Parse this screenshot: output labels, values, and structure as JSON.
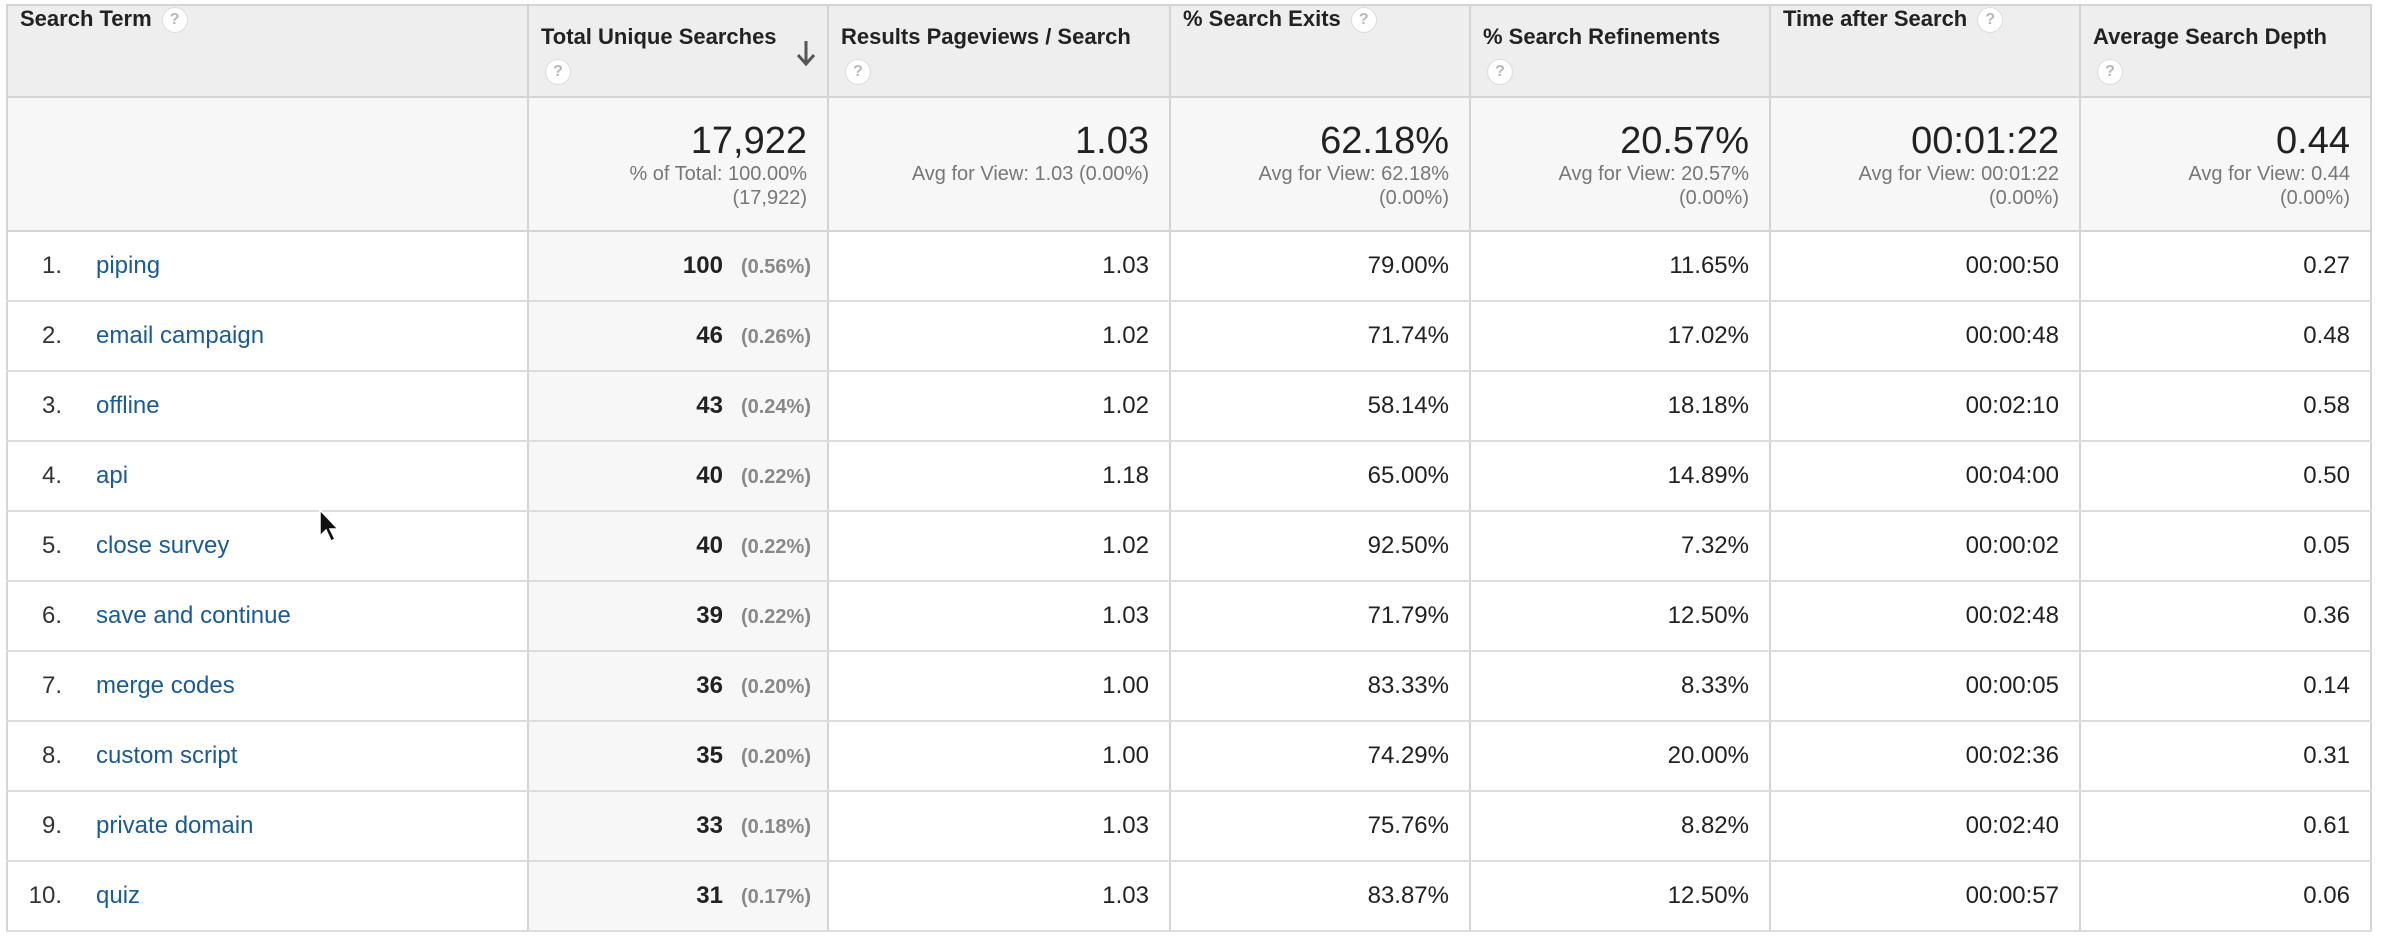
{
  "columns": [
    {
      "label": "Search Term"
    },
    {
      "label": "Total Unique Searches"
    },
    {
      "label": "Results Pageviews / Search"
    },
    {
      "label": "% Search Exits"
    },
    {
      "label": "% Search Refinements"
    },
    {
      "label": "Time after Search"
    },
    {
      "label": "Average Search Depth"
    }
  ],
  "help_icon": "?",
  "totals": {
    "total_unique": {
      "value": "17,922",
      "sub1": "% of Total: 100.00%",
      "sub2": "(17,922)"
    },
    "pageviews": {
      "value": "1.03",
      "sub1": "Avg for View: 1.03 (0.00%)",
      "sub2": ""
    },
    "exits": {
      "value": "62.18%",
      "sub1": "Avg for View: 62.18%",
      "sub2": "(0.00%)"
    },
    "refinements": {
      "value": "20.57%",
      "sub1": "Avg for View: 20.57%",
      "sub2": "(0.00%)"
    },
    "time": {
      "value": "00:01:22",
      "sub1": "Avg for View: 00:01:22",
      "sub2": "(0.00%)"
    },
    "depth": {
      "value": "0.44",
      "sub1": "Avg for View: 0.44",
      "sub2": "(0.00%)"
    }
  },
  "rows": [
    {
      "index": "1.",
      "term": "piping",
      "searches": "100",
      "share": "(0.56%)",
      "pageviews": "1.03",
      "exits": "79.00%",
      "refinements": "11.65%",
      "time": "00:00:50",
      "depth": "0.27"
    },
    {
      "index": "2.",
      "term": "email campaign",
      "searches": "46",
      "share": "(0.26%)",
      "pageviews": "1.02",
      "exits": "71.74%",
      "refinements": "17.02%",
      "time": "00:00:48",
      "depth": "0.48"
    },
    {
      "index": "3.",
      "term": "offline",
      "searches": "43",
      "share": "(0.24%)",
      "pageviews": "1.02",
      "exits": "58.14%",
      "refinements": "18.18%",
      "time": "00:02:10",
      "depth": "0.58"
    },
    {
      "index": "4.",
      "term": "api",
      "searches": "40",
      "share": "(0.22%)",
      "pageviews": "1.18",
      "exits": "65.00%",
      "refinements": "14.89%",
      "time": "00:04:00",
      "depth": "0.50"
    },
    {
      "index": "5.",
      "term": "close survey",
      "searches": "40",
      "share": "(0.22%)",
      "pageviews": "1.02",
      "exits": "92.50%",
      "refinements": "7.32%",
      "time": "00:00:02",
      "depth": "0.05"
    },
    {
      "index": "6.",
      "term": "save and continue",
      "searches": "39",
      "share": "(0.22%)",
      "pageviews": "1.03",
      "exits": "71.79%",
      "refinements": "12.50%",
      "time": "00:02:48",
      "depth": "0.36"
    },
    {
      "index": "7.",
      "term": "merge codes",
      "searches": "36",
      "share": "(0.20%)",
      "pageviews": "1.00",
      "exits": "83.33%",
      "refinements": "8.33%",
      "time": "00:00:05",
      "depth": "0.14"
    },
    {
      "index": "8.",
      "term": "custom script",
      "searches": "35",
      "share": "(0.20%)",
      "pageviews": "1.00",
      "exits": "74.29%",
      "refinements": "20.00%",
      "time": "00:02:36",
      "depth": "0.31"
    },
    {
      "index": "9.",
      "term": "private domain",
      "searches": "33",
      "share": "(0.18%)",
      "pageviews": "1.03",
      "exits": "75.76%",
      "refinements": "8.82%",
      "time": "00:02:40",
      "depth": "0.61"
    },
    {
      "index": "10.",
      "term": "quiz",
      "searches": "31",
      "share": "(0.17%)",
      "pageviews": "1.03",
      "exits": "83.87%",
      "refinements": "12.50%",
      "time": "00:00:57",
      "depth": "0.06"
    }
  ]
}
